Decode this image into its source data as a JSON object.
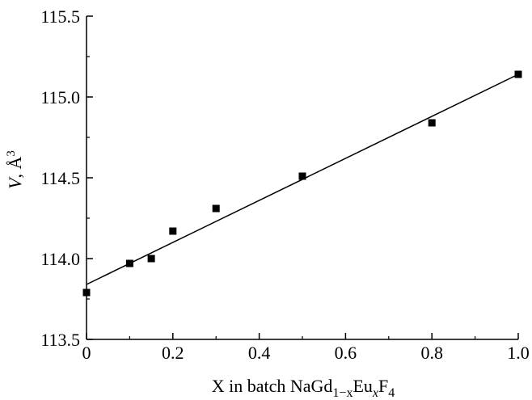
{
  "chart_data": {
    "type": "scatter",
    "xlabel": {
      "prefix": "X in batch NaGd",
      "sub1": "1−x",
      "mid": "Eu",
      "sub2": "x",
      "mid2": "F",
      "sub3": "4"
    },
    "ylabel": {
      "italic": "V",
      "rest": ", Å",
      "sup": "3"
    },
    "xlim": [
      0,
      1.0
    ],
    "ylim": [
      113.5,
      115.5
    ],
    "x_ticks": [
      0,
      0.2,
      0.4,
      0.6,
      0.8,
      1.0
    ],
    "x_tick_labels": [
      "0",
      "0.2",
      "0.4",
      "0.6",
      "0.8",
      "1.0"
    ],
    "y_ticks": [
      113.5,
      114.0,
      114.5,
      115.0,
      115.5
    ],
    "y_tick_labels": [
      "113.5",
      "114.0",
      "114.5",
      "115.0",
      "115.5"
    ],
    "series": [
      {
        "x": [
          0,
          0.1,
          0.15,
          0.2,
          0.3,
          0.5,
          0.8,
          1.0
        ],
        "y": [
          113.79,
          113.97,
          114.0,
          114.17,
          114.31,
          114.51,
          114.84,
          115.14
        ]
      }
    ],
    "fit_line": {
      "x": [
        0,
        1.0
      ],
      "y": [
        113.84,
        115.14
      ]
    },
    "grid": false,
    "marker_color": "#000000",
    "line_color": "#000000"
  }
}
